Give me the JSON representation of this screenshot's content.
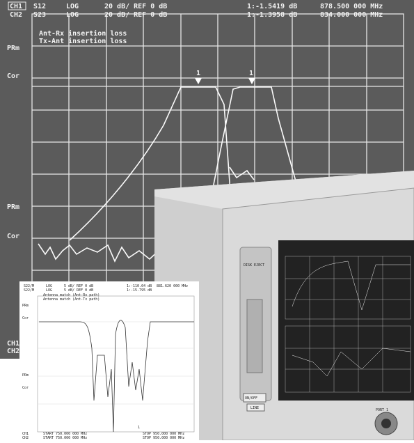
{
  "main_screen": {
    "header": [
      [
        "CH1",
        "S12",
        "LOG",
        "20 dB/ REF 0 dB",
        "1:-1.5419 dB",
        "878.500 000 MHz"
      ],
      [
        "CH2",
        "S23",
        "LOG",
        "20 dB/ REF 0 dB",
        "1:-1.3958 dB",
        "834.000 000 MHz"
      ]
    ],
    "annotations": [
      "Ant-Rx insertion loss",
      "Tx-Ant insertion loss"
    ],
    "side_labels": [
      "PRm",
      "Cor",
      "PRm",
      "Cor"
    ],
    "markers": [
      "1",
      "1"
    ],
    "channels": [
      "CH1",
      "CH2"
    ]
  },
  "inset_screen": {
    "header": [
      [
        "S22/M",
        "LOG",
        "5 dB/ REF 0 dB",
        "1:-110.04 dB",
        "881.620 000 MHz"
      ],
      [
        "S22/M",
        "LOG",
        "5 dB/ REF 0 dB",
        "1:-15.795 dB"
      ]
    ],
    "annotations": [
      "Antenna match (Ant-Rx path)",
      "Antenna match (Ant-Tx path)"
    ],
    "side_labels": [
      "PRm",
      "Cor",
      "PRm",
      "Cor"
    ],
    "marker": "1",
    "footer": [
      [
        "CH1",
        "START 750.000 000 MHz",
        "STOP 950.000 000 MHz"
      ],
      [
        "CH2",
        "START 750.000 000 MHz",
        "STOP 950.000 000 MHz"
      ]
    ]
  },
  "instrument": {
    "disk_label": "DISK EJECT",
    "power_label": "ON/OFF",
    "line_label": "LINE",
    "port_label": "PORT 1"
  }
}
